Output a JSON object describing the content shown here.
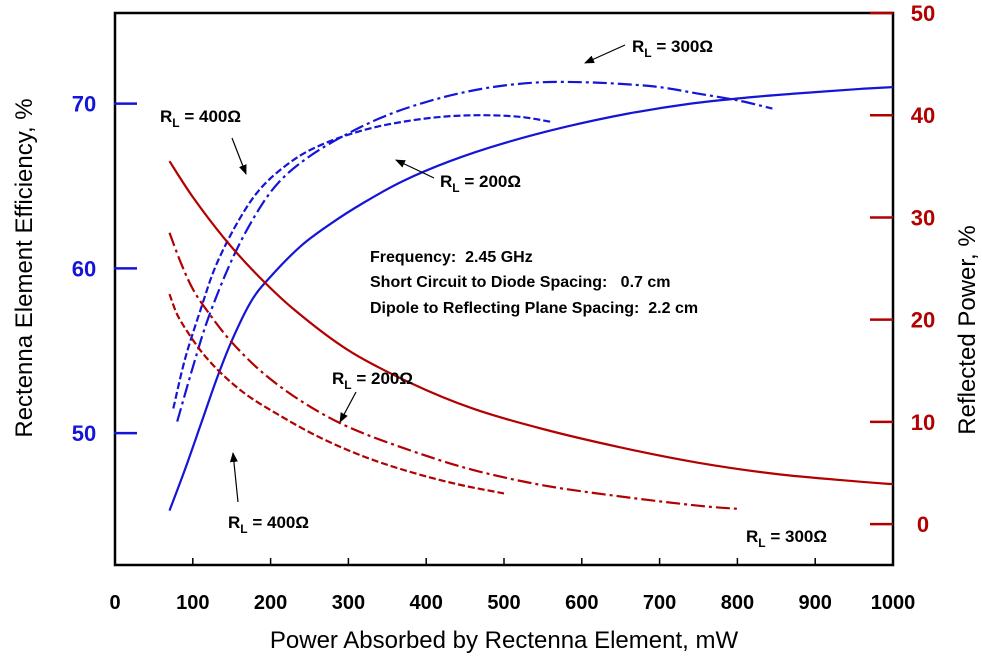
{
  "chart_data": {
    "type": "line",
    "xlabel": "Power Absorbed by Rectenna Element, mW",
    "ylabel_left": "Rectenna Element Efficiency, %",
    "ylabel_right": "Reflected Power, %",
    "xlim": [
      0,
      1000
    ],
    "ylim_left": [
      42,
      75.5
    ],
    "ylim_right": [
      -4,
      50
    ],
    "x_ticks": [
      "0",
      "100",
      "200",
      "300",
      "400",
      "500",
      "600",
      "700",
      "800",
      "900",
      "1000"
    ],
    "left_ticks": [
      "50",
      "60",
      "70"
    ],
    "right_ticks": [
      "0",
      "10",
      "20",
      "30",
      "40",
      "50"
    ],
    "grid": false,
    "colors": {
      "efficiency": "#1515d8",
      "reflected": "#b30000",
      "axes": "#000000"
    },
    "notes": [
      "Frequency:  2.45 GHz",
      "Short Circuit to Diode Spacing:   0.7 cm",
      "Dipole to Reflecting Plane Spacing:  2.2 cm"
    ],
    "series": [
      {
        "name": "RL = 200Ω",
        "axis": "left",
        "color": "#1515d8",
        "dash": "solid",
        "x": [
          70,
          90,
          110,
          130,
          150,
          175,
          200,
          240,
          280,
          320,
          370,
          430,
          500,
          580,
          660,
          740,
          820,
          900,
          960,
          1000
        ],
        "y": [
          45.3,
          47.8,
          50.5,
          53.2,
          55.6,
          58.0,
          59.5,
          61.4,
          62.8,
          64.0,
          65.3,
          66.5,
          67.6,
          68.6,
          69.4,
          70.0,
          70.4,
          70.7,
          70.9,
          71.0
        ]
      },
      {
        "name": "RL = 300Ω",
        "axis": "left",
        "color": "#1515d8",
        "dash": "dashdot",
        "x": [
          80,
          100,
          120,
          150,
          180,
          210,
          250,
          300,
          350,
          400,
          450,
          500,
          550,
          600,
          650,
          700,
          750,
          800,
          845
        ],
        "y": [
          50.7,
          54.0,
          57.0,
          60.5,
          63.2,
          65.2,
          66.8,
          68.2,
          69.3,
          70.1,
          70.7,
          71.1,
          71.3,
          71.3,
          71.2,
          71.0,
          70.6,
          70.2,
          69.7
        ]
      },
      {
        "name": "RL = 400Ω",
        "axis": "left",
        "color": "#1515d8",
        "dash": "dashed",
        "x": [
          75,
          90,
          110,
          130,
          160,
          190,
          230,
          270,
          320,
          370,
          420,
          470,
          520,
          560
        ],
        "y": [
          51.5,
          54.5,
          57.5,
          60.2,
          63.0,
          65.0,
          66.6,
          67.6,
          68.4,
          68.9,
          69.2,
          69.3,
          69.2,
          68.9
        ]
      },
      {
        "name": "RL = 200Ω",
        "axis": "right",
        "color": "#b30000",
        "dash": "solid",
        "x": [
          70,
          100,
          140,
          180,
          230,
          300,
          380,
          460,
          550,
          650,
          750,
          850,
          950,
          1000
        ],
        "y": [
          35.5,
          32.0,
          28.0,
          24.6,
          21.0,
          17.0,
          13.8,
          11.3,
          9.3,
          7.5,
          6.0,
          4.9,
          4.2,
          3.9
        ]
      },
      {
        "name": "RL = 300Ω",
        "axis": "right",
        "color": "#b30000",
        "dash": "dashdot",
        "x": [
          70,
          85,
          100,
          120,
          150,
          190,
          240,
          300,
          380,
          460,
          550,
          650,
          750,
          800
        ],
        "y": [
          28.5,
          25.5,
          23.0,
          20.7,
          17.8,
          14.8,
          12.0,
          9.5,
          7.2,
          5.3,
          3.8,
          2.7,
          1.8,
          1.5
        ]
      },
      {
        "name": "RL = 400Ω",
        "axis": "right",
        "color": "#b30000",
        "dash": "dashed",
        "x": [
          70,
          80,
          95,
          115,
          140,
          170,
          210,
          260,
          320,
          380,
          440,
          500
        ],
        "y": [
          22.5,
          20.5,
          18.6,
          16.5,
          14.5,
          12.6,
          10.7,
          8.6,
          6.6,
          5.1,
          3.9,
          3.0
        ]
      }
    ],
    "annotations": [
      {
        "main": "R",
        "sub": "L",
        "rest": " = 400Ω"
      },
      {
        "main": "R",
        "sub": "L",
        "rest": " = 300Ω"
      },
      {
        "main": "R",
        "sub": "L",
        "rest": " = 200Ω"
      },
      {
        "main": "R",
        "sub": "L",
        "rest": " = 200Ω"
      },
      {
        "main": "R",
        "sub": "L",
        "rest": " = 400Ω"
      },
      {
        "main": "R",
        "sub": "L",
        "rest": " = 300Ω"
      }
    ]
  }
}
